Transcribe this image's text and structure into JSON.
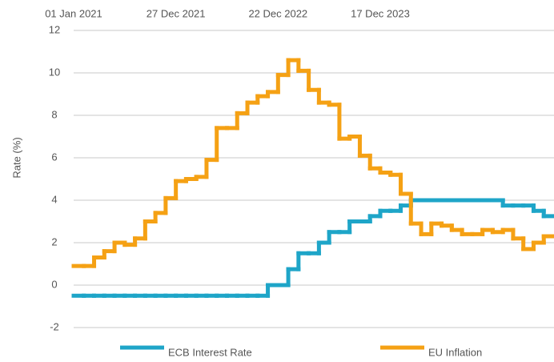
{
  "chart_data": {
    "type": "line",
    "step": true,
    "y_label": "Rate (%)",
    "categories": [
      "01 Jan 2021",
      null,
      null,
      null,
      null,
      null,
      null,
      null,
      null,
      null,
      "27 Dec 2021",
      null,
      null,
      null,
      null,
      null,
      null,
      null,
      null,
      null,
      "22 Dec 2022",
      null,
      null,
      null,
      null,
      null,
      null,
      null,
      null,
      null,
      "17 Dec 2023",
      null,
      null,
      null,
      null,
      null,
      null,
      null,
      null,
      null,
      null,
      null,
      null,
      null,
      null,
      null,
      null
    ],
    "series": [
      {
        "name": "ECB Interest Rate",
        "color": "#1ea5c8",
        "values": [
          -0.5,
          -0.5,
          -0.5,
          -0.5,
          -0.5,
          -0.5,
          -0.5,
          -0.5,
          -0.5,
          -0.5,
          -0.5,
          -0.5,
          -0.5,
          -0.5,
          -0.5,
          -0.5,
          -0.5,
          -0.5,
          -0.5,
          0,
          0,
          0.75,
          1.5,
          1.5,
          2.0,
          2.5,
          2.5,
          3.0,
          3.0,
          3.25,
          3.5,
          3.5,
          3.75,
          4.0,
          4.0,
          4.0,
          4.0,
          4.0,
          4.0,
          4.0,
          4.0,
          4.0,
          3.75,
          3.75,
          3.75,
          3.5,
          3.25
        ]
      },
      {
        "name": "EU Inflation",
        "color": "#f5a114",
        "values": [
          0.9,
          0.9,
          1.3,
          1.6,
          2.0,
          1.9,
          2.2,
          3.0,
          3.4,
          4.1,
          4.9,
          5.0,
          5.1,
          5.9,
          7.4,
          7.4,
          8.1,
          8.6,
          8.9,
          9.1,
          9.9,
          10.6,
          10.1,
          9.2,
          8.6,
          8.5,
          6.9,
          7.0,
          6.1,
          5.5,
          5.3,
          5.2,
          4.3,
          2.9,
          2.4,
          2.9,
          2.8,
          2.6,
          2.4,
          2.4,
          2.6,
          2.5,
          2.6,
          2.2,
          1.7,
          2.0,
          2.3
        ]
      }
    ],
    "ylim": [
      -2,
      12
    ],
    "yticks": [
      -2,
      0,
      2,
      4,
      6,
      8,
      10,
      12
    ],
    "grid": true,
    "legend": "bottom"
  }
}
